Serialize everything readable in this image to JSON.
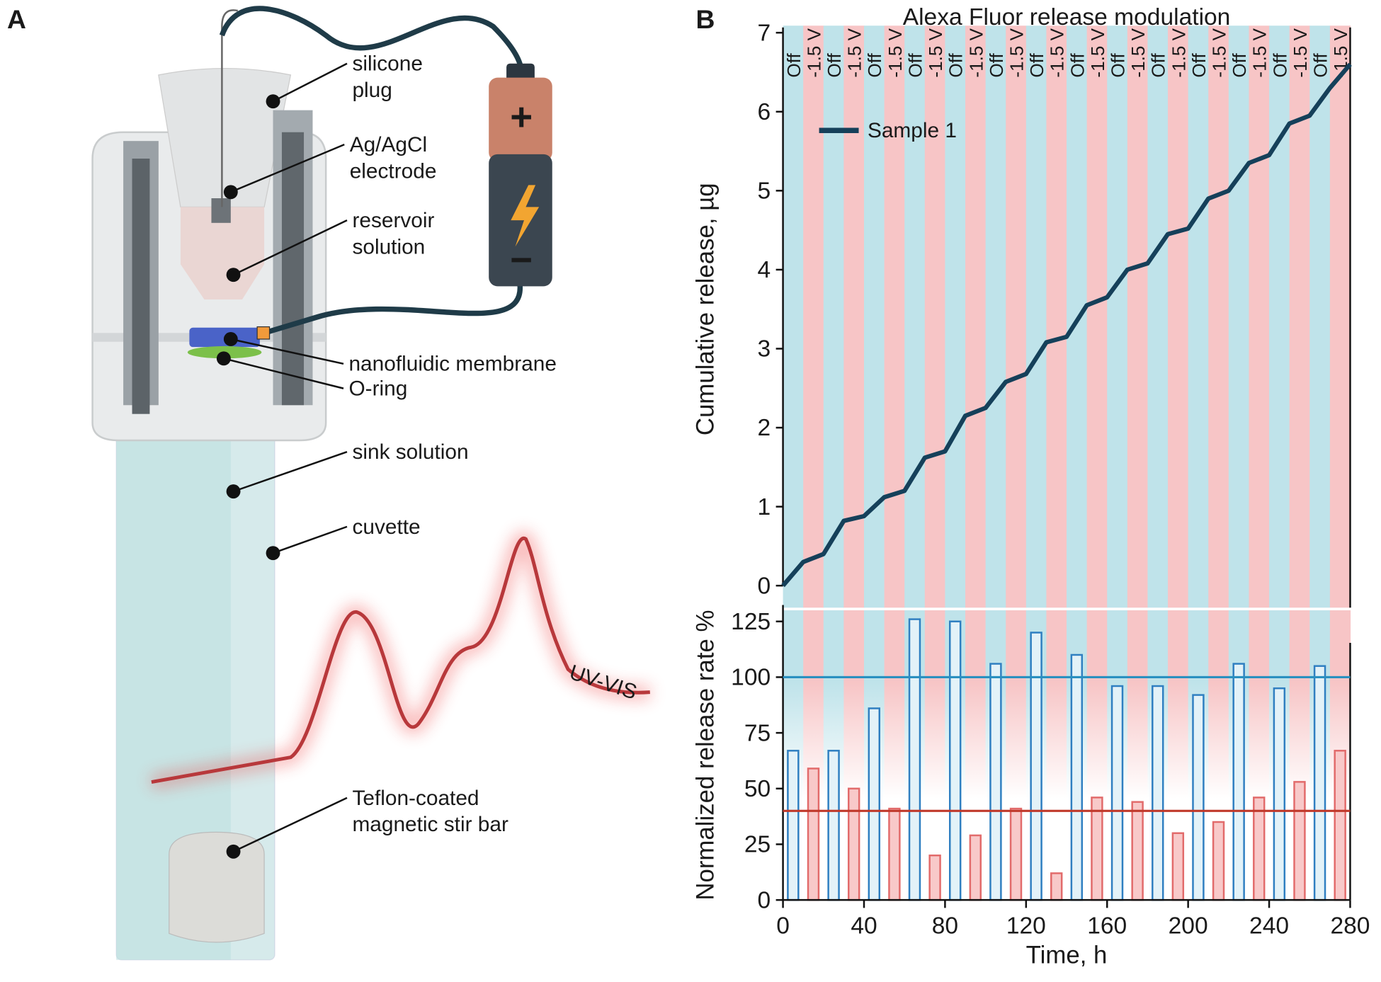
{
  "panels": {
    "a": "A",
    "b": "B"
  },
  "diagram": {
    "labels": [
      {
        "lines": [
          "silicone",
          "plug"
        ]
      },
      {
        "lines": [
          "Ag/AgCl",
          "electrode"
        ]
      },
      {
        "lines": [
          "reservoir",
          "solution"
        ]
      },
      {
        "lines": [
          "nanofluidic membrane"
        ]
      },
      {
        "lines": [
          "O-ring"
        ]
      },
      {
        "lines": [
          "sink solution"
        ]
      },
      {
        "lines": [
          "cuvette"
        ]
      },
      {
        "lines": [
          "Teflon-coated",
          "magnetic stir bar"
        ]
      }
    ],
    "battery": {
      "plus": "+",
      "minus": "−"
    },
    "spectrum": "UV-VIS"
  },
  "chart_data": [
    {
      "type": "line",
      "title": "Alexa Fluor release modulation",
      "ylabel": "Cumulative release, µg",
      "xlim": [
        0,
        280
      ],
      "ylim": [
        0,
        7
      ],
      "yticks": [
        0,
        1,
        2,
        3,
        4,
        5,
        6,
        7
      ],
      "phases": [
        "Off",
        "-1.5 V",
        "Off",
        "-1.5 V",
        "Off",
        "-1.5 V",
        "Off",
        "-1.5 V",
        "Off",
        "-1.5 V",
        "Off",
        "-1.5 V",
        "Off",
        "-1.5 V",
        "Off",
        "-1.5 V",
        "Off",
        "-1.5 V",
        "Off",
        "-1.5 V",
        "Off",
        "-1.5 V",
        "Off",
        "-1.5 V",
        "Off",
        "-1.5 V",
        "Off",
        "-1.5 V"
      ],
      "phase_colors": [
        "#bfe3ea",
        "#f7c5c6"
      ],
      "legend": "upper left",
      "series": [
        {
          "name": "Sample 1",
          "color": "#15405a",
          "x": [
            0,
            10,
            20,
            30,
            40,
            50,
            60,
            70,
            80,
            90,
            100,
            110,
            120,
            130,
            140,
            150,
            160,
            170,
            180,
            190,
            200,
            210,
            220,
            230,
            240,
            250,
            260,
            270,
            280
          ],
          "values": [
            0,
            0.3,
            0.4,
            0.82,
            0.88,
            1.12,
            1.2,
            1.62,
            1.7,
            2.15,
            2.25,
            2.58,
            2.68,
            3.08,
            3.15,
            3.55,
            3.65,
            4.0,
            4.08,
            4.45,
            4.52,
            4.9,
            5.0,
            5.35,
            5.45,
            5.85,
            5.95,
            6.3,
            6.6
          ]
        }
      ]
    },
    {
      "type": "bar",
      "xlabel": "Time, h",
      "ylabel": "Normalized release rate %",
      "xlim": [
        0,
        280
      ],
      "xticks": [
        0,
        40,
        80,
        120,
        160,
        200,
        240,
        280
      ],
      "ylim": [
        0,
        130
      ],
      "yticks": [
        0,
        25,
        50,
        75,
        100,
        125
      ],
      "series": [
        {
          "color": "#2f7fc1",
          "fill": "#e3f2f8",
          "x": [
            5,
            25,
            45,
            65,
            85,
            105,
            125,
            145,
            165,
            185,
            205,
            225,
            245,
            265
          ],
          "values": [
            67,
            67,
            86,
            126,
            125,
            106,
            120,
            110,
            96,
            96,
            92,
            106,
            95,
            105
          ]
        },
        {
          "color": "#e26b6b",
          "fill": "#f8c9c9",
          "x": [
            15,
            35,
            55,
            75,
            95,
            115,
            135,
            155,
            175,
            195,
            215,
            235,
            255,
            275
          ],
          "values": [
            59,
            50,
            41,
            20,
            29,
            41,
            12,
            46,
            44,
            30,
            35,
            46,
            53,
            67
          ]
        }
      ],
      "hlines": [
        {
          "value": 100,
          "color": "#2a90c0"
        },
        {
          "value": 40,
          "color": "#c0392b"
        }
      ]
    }
  ]
}
